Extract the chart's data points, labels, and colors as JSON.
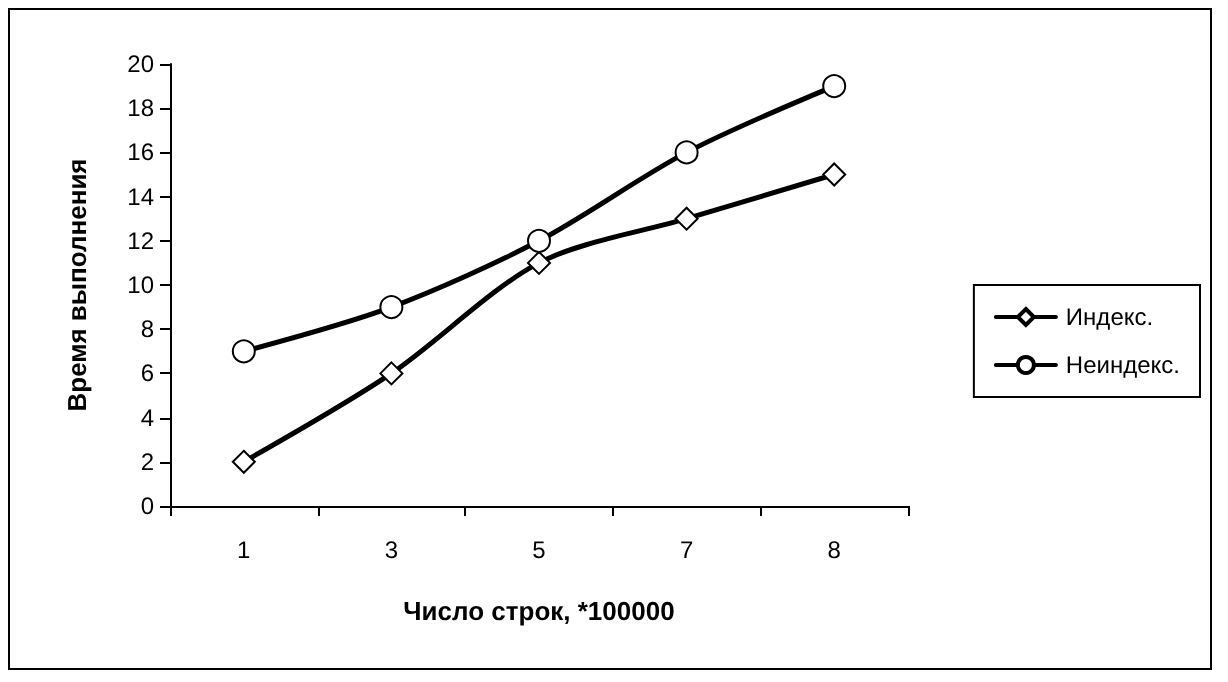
{
  "chart_data": {
    "type": "line",
    "xlabel": "Число строк, *100000",
    "ylabel": "Время выполнения",
    "categories": [
      "1",
      "3",
      "5",
      "7",
      "8"
    ],
    "series": [
      {
        "name": "Индекс.",
        "color": "#000000",
        "marker": "diamond",
        "values": [
          2,
          6,
          11,
          13,
          15
        ]
      },
      {
        "name": "Неиндекс.",
        "color": "#000000",
        "marker": "circle",
        "values": [
          7,
          9,
          12,
          16,
          19
        ]
      }
    ],
    "ylim": [
      0,
      20
    ],
    "yticks": [
      0,
      2,
      4,
      6,
      8,
      10,
      12,
      14,
      16,
      18,
      20
    ],
    "grid": false,
    "legend": "right",
    "line_style": "solid"
  }
}
